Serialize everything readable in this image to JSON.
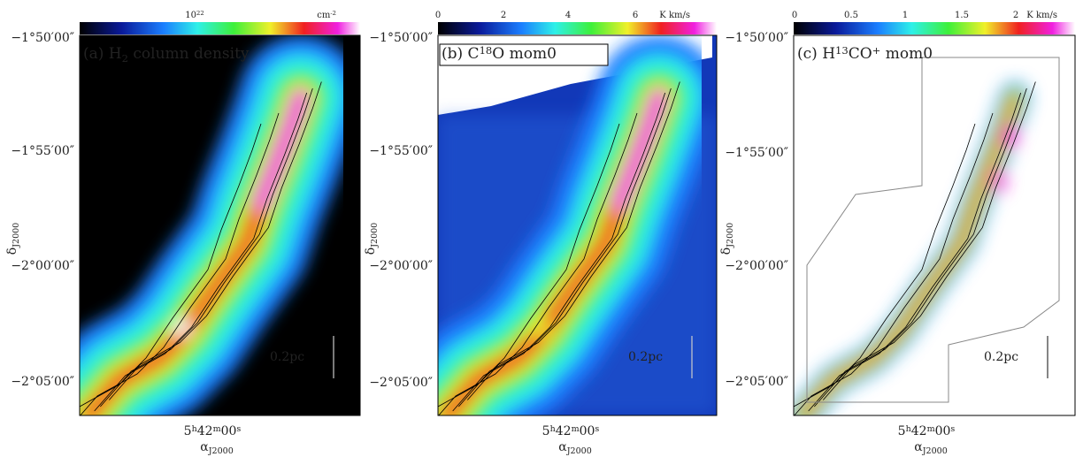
{
  "panels": [
    {
      "title": {
        "text": "(a) H",
        "sub": "2",
        "rest": " column density"
      },
      "colorbar": {
        "ticks": [
          {
            "text": "10",
            "sup": "22"
          }
        ],
        "unit": {
          "text": "cm",
          "sup": "-2"
        }
      }
    },
    {
      "title": {
        "text": "(b) C",
        "sup": "18",
        "rest": "O mom0"
      },
      "colorbar": {
        "ticks": [
          {
            "text": "0"
          },
          {
            "text": "2"
          },
          {
            "text": "4"
          },
          {
            "text": "6"
          }
        ],
        "unit": {
          "text": "K km/s"
        }
      }
    },
    {
      "title": {
        "text": "(c) H",
        "sup": "13",
        "rest": "CO",
        "sup2": "+",
        "rest2": " mom0"
      },
      "colorbar": {
        "ticks": [
          {
            "text": "0"
          },
          {
            "text": "0.5"
          },
          {
            "text": "1"
          },
          {
            "text": "1.5"
          },
          {
            "text": "2"
          }
        ],
        "unit": {
          "text": "K km/s"
        }
      }
    }
  ],
  "axes": {
    "yticks": [
      "−1°50′00″",
      "−1°55′00″",
      "−2°00′00″",
      "−2°05′00″"
    ],
    "ylabel": {
      "text": "δ",
      "sub": "J2000"
    },
    "xtick": {
      "a": "5",
      "b": "h",
      "c": "42",
      "d": "m",
      "e": "00",
      "f": "s"
    },
    "xlabel": {
      "text": "α",
      "sub": "J2000"
    },
    "scale": "0.2pc"
  }
}
